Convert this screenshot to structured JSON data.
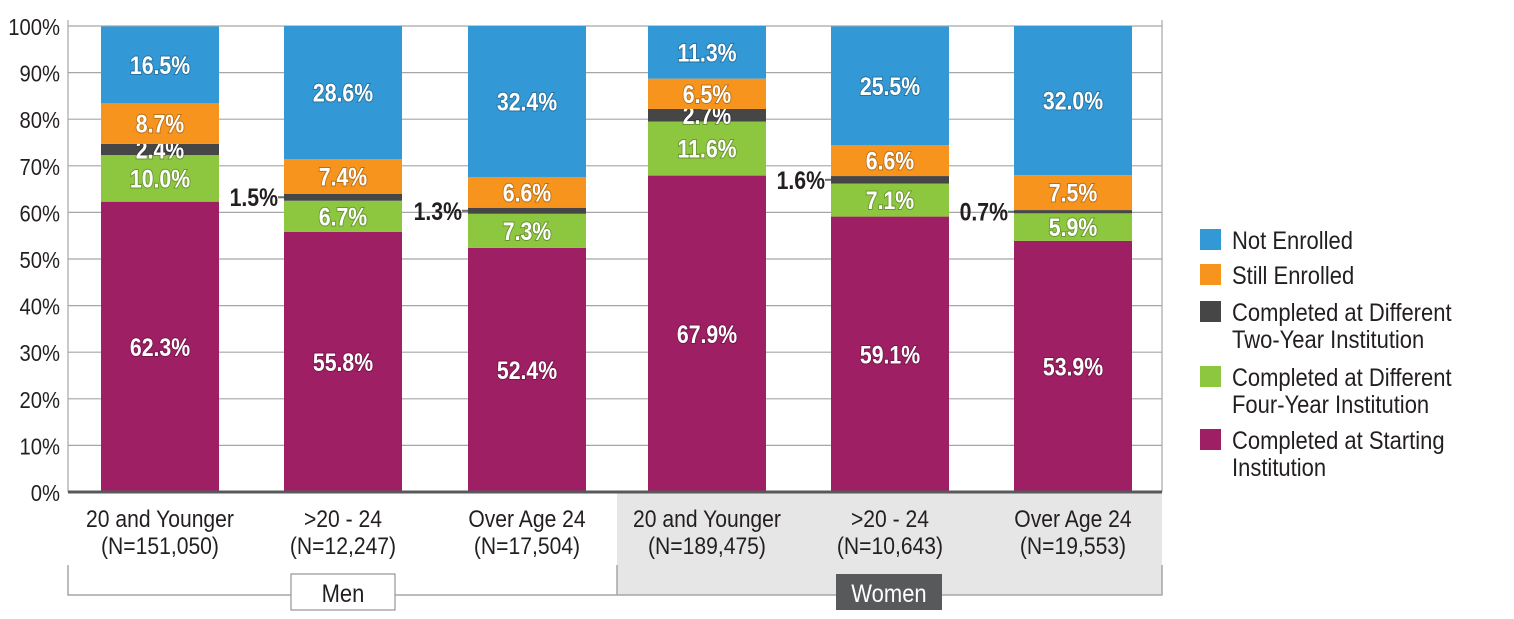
{
  "chart_data": {
    "type": "bar",
    "stacked": true,
    "title": "",
    "xlabel": "",
    "ylabel": "",
    "ylim": [
      0,
      100
    ],
    "grid": true,
    "y_ticks": [
      "0%",
      "10%",
      "20%",
      "30%",
      "40%",
      "50%",
      "60%",
      "70%",
      "80%",
      "90%",
      "100%"
    ],
    "categories": [
      {
        "line1": "20 and Younger",
        "line2": "(N=151,050)",
        "group": "Men"
      },
      {
        "line1": ">20 - 24",
        "line2": "(N=12,247)",
        "group": "Men"
      },
      {
        "line1": "Over Age 24",
        "line2": "(N=17,504)",
        "group": "Men"
      },
      {
        "line1": "20 and Younger",
        "line2": "(N=189,475)",
        "group": "Women"
      },
      {
        "line1": ">20 - 24",
        "line2": "(N=10,643)",
        "group": "Women"
      },
      {
        "line1": "Over Age 24",
        "line2": "(N=19,553)",
        "group": "Women"
      }
    ],
    "groups": [
      "Men",
      "Women"
    ],
    "series": [
      {
        "name": "Completed at Starting Institution",
        "legend": [
          "Completed at Starting",
          "Institution"
        ],
        "color": "#9e1f63",
        "values": [
          62.3,
          55.8,
          52.4,
          67.9,
          59.1,
          53.9
        ],
        "labels": [
          "62.3%",
          "55.8%",
          "52.4%",
          "67.9%",
          "59.1%",
          "53.9%"
        ]
      },
      {
        "name": "Completed at Different Four-Year Institution",
        "legend": [
          "Completed at Different",
          "Four-Year Institution"
        ],
        "color": "#8dc63f",
        "values": [
          10.0,
          6.7,
          7.3,
          11.6,
          7.1,
          5.9
        ],
        "labels": [
          "10.0%",
          "6.7%",
          "7.3%",
          "11.6%",
          "7.1%",
          "5.9%"
        ]
      },
      {
        "name": "Completed at Different Two-Year Institution",
        "legend": [
          "Completed at Different",
          "Two-Year Institution"
        ],
        "color": "#464646",
        "values": [
          2.4,
          1.5,
          1.3,
          2.7,
          1.6,
          0.7
        ],
        "labels": [
          "2.4%",
          "1.5%",
          "1.3%",
          "2.7%",
          "1.6%",
          "0.7%"
        ],
        "label_outside": [
          false,
          true,
          true,
          false,
          true,
          true
        ]
      },
      {
        "name": "Still Enrolled",
        "legend": [
          "Still Enrolled"
        ],
        "color": "#f7941d",
        "values": [
          8.7,
          7.4,
          6.6,
          6.5,
          6.6,
          7.5
        ],
        "labels": [
          "8.7%",
          "7.4%",
          "6.6%",
          "6.5%",
          "6.6%",
          "7.5%"
        ]
      },
      {
        "name": "Not Enrolled",
        "legend": [
          "Not Enrolled"
        ],
        "color": "#3399d6",
        "values": [
          16.5,
          28.6,
          32.4,
          11.3,
          25.5,
          32.0
        ],
        "labels": [
          "16.5%",
          "28.6%",
          "32.4%",
          "11.3%",
          "25.5%",
          "32.0%"
        ]
      }
    ],
    "legend_position": "right"
  }
}
